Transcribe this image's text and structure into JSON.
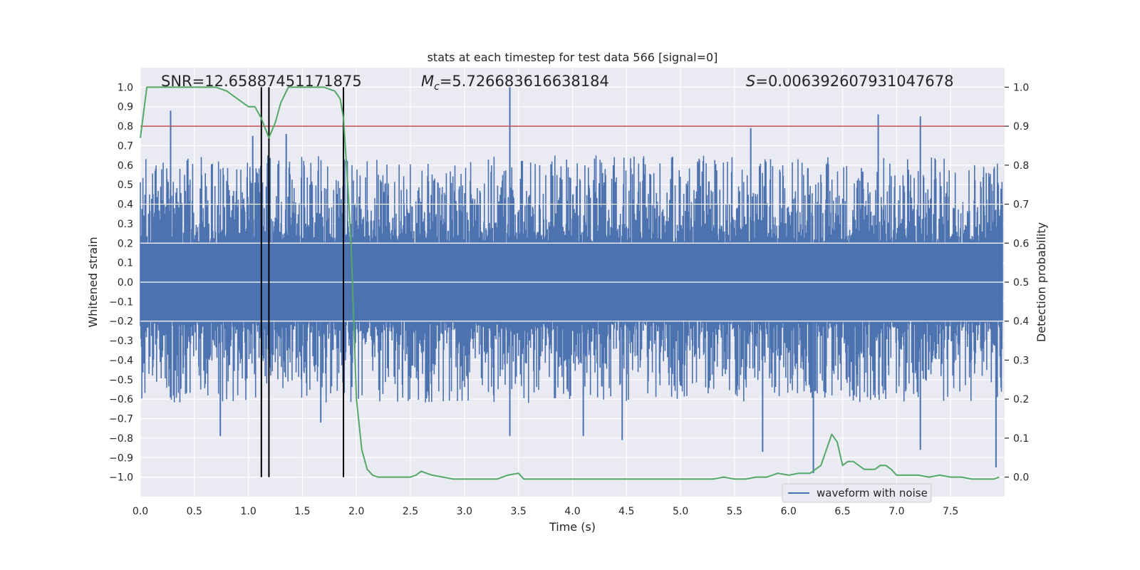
{
  "chart_data": {
    "type": "line",
    "title": "stats at each timestep for test data 566 [signal=0]",
    "xlabel": "Time (s)",
    "ylabel_left": "Whitened strain",
    "ylabel_right": "Detection probability",
    "xlim": [
      0.0,
      8.0
    ],
    "ylim_left": [
      -1.1,
      1.1
    ],
    "ylim_right": [
      -0.05,
      1.05
    ],
    "x_ticks": [
      "0.0",
      "0.5",
      "1.0",
      "1.5",
      "2.0",
      "2.5",
      "3.0",
      "3.5",
      "4.0",
      "4.5",
      "5.0",
      "5.5",
      "6.0",
      "6.5",
      "7.0",
      "7.5"
    ],
    "y_left_ticks": [
      "1.0",
      "0.9",
      "0.8",
      "0.7",
      "0.6",
      "0.5",
      "0.4",
      "0.3",
      "0.2",
      "0.1",
      "0.0",
      "−0.1",
      "−0.2",
      "−0.3",
      "−0.4",
      "−0.5",
      "−0.6",
      "−0.7",
      "−0.8",
      "−0.9",
      "−1.0"
    ],
    "y_right_ticks": [
      "1.0",
      "0.9",
      "0.8",
      "0.7",
      "0.6",
      "0.5",
      "0.4",
      "0.3",
      "0.2",
      "0.1",
      "0.0"
    ],
    "grid": true,
    "background": "#eaeaf2",
    "annotations": {
      "snr": "SNR=12.65887451171875",
      "mc_symbol": "M",
      "mc_subscript": "c",
      "mc_value": "=5.726683616638184",
      "s_symbol": "S",
      "s_value": "=0.006392607931047678"
    },
    "legend": {
      "entries": [
        "waveform with noise"
      ],
      "location": "lower-right"
    },
    "threshold": {
      "value": 0.9,
      "axis": "right",
      "color": "#c44e52"
    },
    "vertical_lines": [
      1.12,
      1.19,
      1.88
    ],
    "series": [
      {
        "name": "waveform with noise",
        "axis": "left",
        "color": "#4c72b0",
        "description_values": {
          "typical_band": [
            -0.2,
            0.2
          ],
          "peaks_up": [
            [
              0.28,
              0.88
            ],
            [
              3.42,
              1.0
            ],
            [
              5.65,
              0.79
            ],
            [
              6.83,
              0.86
            ],
            [
              7.22,
              0.85
            ],
            [
              1.35,
              0.76
            ],
            [
              1.04,
              0.75
            ]
          ],
          "peaks_down": [
            [
              1.67,
              -0.72
            ],
            [
              3.42,
              -0.79
            ],
            [
              4.1,
              -0.79
            ],
            [
              4.46,
              -0.81
            ],
            [
              5.76,
              -0.87
            ],
            [
              6.23,
              -0.98
            ],
            [
              7.22,
              -0.86
            ],
            [
              7.92,
              -0.95
            ],
            [
              0.74,
              -0.79
            ]
          ]
        }
      },
      {
        "name": "",
        "axis": "right",
        "color": "#55a868",
        "x": [
          0.0,
          0.06,
          0.1,
          0.2,
          0.3,
          0.4,
          0.5,
          0.6,
          0.7,
          0.8,
          0.9,
          1.0,
          1.06,
          1.12,
          1.19,
          1.25,
          1.3,
          1.37,
          1.42,
          1.5,
          1.6,
          1.7,
          1.8,
          1.85,
          1.88,
          1.92,
          1.95,
          2.0,
          2.05,
          2.1,
          2.15,
          2.2,
          2.3,
          2.4,
          2.5,
          2.55,
          2.6,
          2.7,
          2.8,
          2.9,
          3.0,
          3.1,
          3.2,
          3.3,
          3.4,
          3.5,
          3.55,
          3.6,
          3.7,
          3.8,
          3.9,
          4.0,
          4.1,
          4.2,
          4.3,
          4.4,
          4.5,
          4.6,
          4.7,
          4.8,
          4.9,
          5.0,
          5.1,
          5.2,
          5.3,
          5.4,
          5.5,
          5.6,
          5.7,
          5.8,
          5.9,
          6.0,
          6.1,
          6.2,
          6.3,
          6.35,
          6.4,
          6.45,
          6.5,
          6.55,
          6.6,
          6.65,
          6.7,
          6.75,
          6.8,
          6.85,
          6.9,
          6.95,
          7.0,
          7.1,
          7.2,
          7.3,
          7.4,
          7.5,
          7.6,
          7.7,
          7.8,
          7.9,
          7.95
        ],
        "y": [
          0.87,
          1.0,
          1.0,
          1.0,
          1.0,
          1.0,
          1.0,
          1.0,
          1.0,
          0.99,
          0.97,
          0.95,
          0.95,
          0.92,
          0.87,
          0.91,
          0.96,
          1.0,
          1.0,
          1.0,
          1.0,
          1.0,
          0.99,
          0.97,
          0.92,
          0.75,
          0.6,
          0.2,
          0.07,
          0.02,
          0.005,
          0.0,
          0.0,
          0.0,
          0.0,
          0.005,
          0.015,
          0.005,
          0.0,
          -0.005,
          -0.005,
          -0.005,
          -0.005,
          -0.005,
          0.005,
          0.01,
          -0.005,
          -0.005,
          -0.005,
          -0.005,
          -0.005,
          -0.005,
          -0.005,
          -0.005,
          -0.005,
          -0.005,
          -0.005,
          -0.005,
          -0.005,
          -0.005,
          -0.005,
          -0.005,
          -0.005,
          -0.005,
          -0.005,
          0.0,
          -0.005,
          -0.005,
          0.0,
          0.0,
          0.01,
          0.005,
          0.01,
          0.01,
          0.03,
          0.07,
          0.11,
          0.09,
          0.03,
          0.04,
          0.04,
          0.03,
          0.02,
          0.02,
          0.02,
          0.03,
          0.03,
          0.02,
          0.005,
          0.005,
          0.005,
          0.0,
          0.005,
          0.0,
          0.0,
          -0.005,
          -0.005,
          -0.005,
          0.0
        ]
      }
    ]
  }
}
